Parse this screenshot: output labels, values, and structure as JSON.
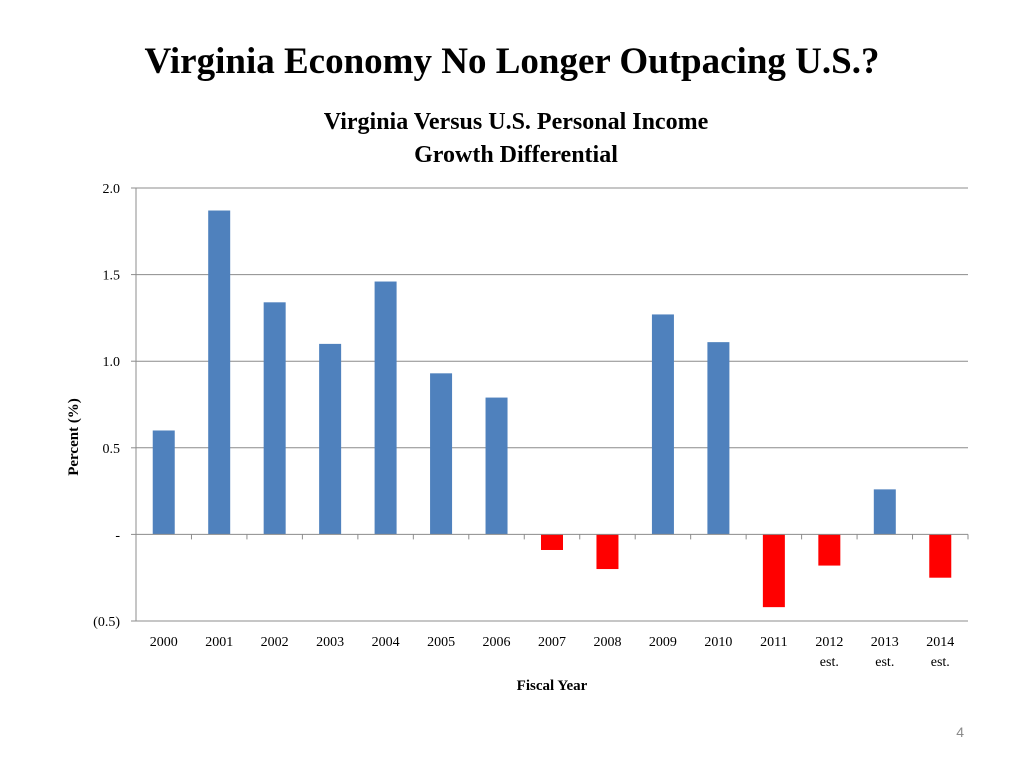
{
  "slide": {
    "title": "Virginia Economy No Longer Outpacing U.S.?",
    "page_number": "4"
  },
  "chart_data": {
    "type": "bar",
    "title_lines": [
      "Virginia Versus U.S. Personal Income",
      "Growth Differential"
    ],
    "xlabel": "Fiscal Year",
    "ylabel": "Percent (%)",
    "ylim": [
      -0.5,
      2.0
    ],
    "yticks": [
      {
        "value": 2.0,
        "label": "2.0"
      },
      {
        "value": 1.5,
        "label": "1.5"
      },
      {
        "value": 1.0,
        "label": "1.0"
      },
      {
        "value": 0.5,
        "label": "0.5"
      },
      {
        "value": 0.0,
        "label": "-"
      },
      {
        "value": -0.5,
        "label": "(0.5)"
      }
    ],
    "categories": [
      [
        "2000"
      ],
      [
        "2001"
      ],
      [
        "2002"
      ],
      [
        "2003"
      ],
      [
        "2004"
      ],
      [
        "2005"
      ],
      [
        "2006"
      ],
      [
        "2007"
      ],
      [
        "2008"
      ],
      [
        "2009"
      ],
      [
        "2010"
      ],
      [
        "2011"
      ],
      [
        "2012",
        "est."
      ],
      [
        "2013",
        "est."
      ],
      [
        "2014",
        "est."
      ]
    ],
    "values": [
      0.6,
      1.87,
      1.34,
      1.1,
      1.46,
      0.93,
      0.79,
      -0.09,
      -0.2,
      1.27,
      1.11,
      -0.42,
      -0.18,
      0.26,
      -0.25
    ],
    "colors": {
      "positive": "#4f81bd",
      "negative": "#ff0000"
    },
    "grid": true,
    "legend": "none"
  }
}
